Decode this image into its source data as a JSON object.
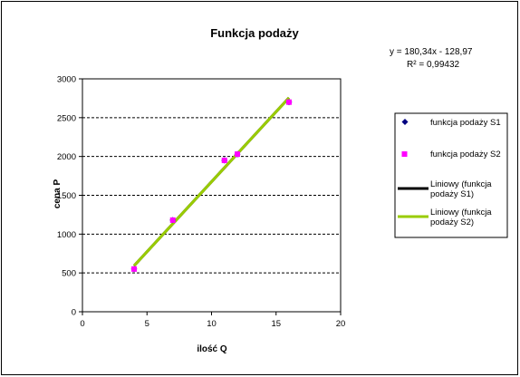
{
  "chart_data": {
    "type": "scatter",
    "title": "Funkcja podaży",
    "xlabel": "ilość Q",
    "ylabel": "cena P",
    "xlim": [
      0,
      20
    ],
    "ylim": [
      0,
      3000
    ],
    "x_ticks": [
      "0",
      "5",
      "10",
      "15",
      "20"
    ],
    "y_ticks": [
      "0",
      "500",
      "1000",
      "1500",
      "2000",
      "2500",
      "3000"
    ],
    "grid": "horizontal dashed",
    "legend_position": "right",
    "equation": "y = 180,34x  - 128,97",
    "r_squared": "R² = 0,99432",
    "series": [
      {
        "name": "funkcja podaży S1",
        "marker": "diamond",
        "color": "#000080",
        "points": [
          {
            "x": 4,
            "y": 550
          },
          {
            "x": 7,
            "y": 1180
          },
          {
            "x": 11,
            "y": 1950
          },
          {
            "x": 12,
            "y": 2030
          },
          {
            "x": 16,
            "y": 2700
          }
        ]
      },
      {
        "name": "funkcja podaży S2",
        "marker": "square",
        "color": "#ff00ff",
        "points": [
          {
            "x": 4,
            "y": 550
          },
          {
            "x": 7,
            "y": 1180
          },
          {
            "x": 11,
            "y": 1950
          },
          {
            "x": 12,
            "y": 2030
          },
          {
            "x": 16,
            "y": 2700
          }
        ]
      }
    ],
    "trendlines": [
      {
        "name": "Liniowy  (funkcja podaży S1)",
        "line1": "Liniowy  (funkcja",
        "line2": "podaży S1)",
        "color": "#000000",
        "x_range": [
          4,
          16
        ],
        "slope": 180.34,
        "intercept": -128.97
      },
      {
        "name": "Liniowy  (funkcja podaży S2)",
        "line1": "Liniowy  (funkcja",
        "line2": "podaży S2)",
        "color": "#99cc00",
        "x_range": [
          4,
          16
        ],
        "slope": 180.34,
        "intercept": -128.97
      }
    ]
  }
}
